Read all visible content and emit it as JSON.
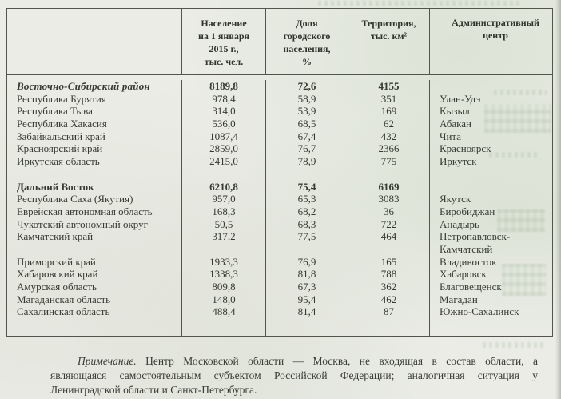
{
  "table": {
    "headers": {
      "region": "",
      "population": {
        "lines": [
          "Население",
          "на 1 января",
          "2015 г.,",
          "тыс. чел."
        ]
      },
      "urban_share": {
        "lines": [
          "Доля",
          "городского",
          "населения,",
          "%"
        ]
      },
      "territory": {
        "lines": [
          "Территория,",
          "тыс. км²"
        ]
      },
      "admin_center": {
        "lines": [
          "Административный",
          "центр"
        ]
      }
    },
    "rows": [
      {
        "style": "group-italic",
        "region": "Восточно-Сибирский район",
        "population": "8189,8",
        "urban": "72,6",
        "territory": "4155",
        "center": ""
      },
      {
        "region": "Республика Бурятия",
        "population": "978,4",
        "urban": "58,9",
        "territory": "351",
        "center": "Улан-Удэ"
      },
      {
        "region": "Республика Тыва",
        "population": "314,0",
        "urban": "53,9",
        "territory": "169",
        "center": "Кызыл"
      },
      {
        "region": "Республика Хакасия",
        "population": "536,0",
        "urban": "68,5",
        "territory": "62",
        "center": "Абакан"
      },
      {
        "region": "Забайкальский край",
        "population": "1087,4",
        "urban": "67,4",
        "territory": "432",
        "center": "Чита"
      },
      {
        "region": "Красноярский край",
        "population": "2859,0",
        "urban": "76,7",
        "territory": "2366",
        "center": "Красноярск"
      },
      {
        "region": "Иркутская область",
        "population": "2415,0",
        "urban": "78,9",
        "territory": "775",
        "center": "Иркутск"
      },
      {
        "style": "spacer",
        "region": "",
        "population": "",
        "urban": "",
        "territory": "",
        "center": ""
      },
      {
        "style": "group",
        "region": "Дальний Восток",
        "population": "6210,8",
        "urban": "75,4",
        "territory": "6169",
        "center": ""
      },
      {
        "region": "Республика Саха (Якутия)",
        "population": "957,0",
        "urban": "65,3",
        "territory": "3083",
        "center": "Якутск"
      },
      {
        "region": "Еврейская автономная область",
        "population": "168,3",
        "urban": "68,2",
        "territory": "36",
        "center": "Биробиджан"
      },
      {
        "region": "Чукотский автономный округ",
        "population": "50,5",
        "urban": "68,3",
        "territory": "722",
        "center": "Анадырь"
      },
      {
        "style": "tall",
        "region": "Камчатский край",
        "population": "317,2",
        "urban": "77,5",
        "territory": "464",
        "center": "Петропавловск-Камчатский"
      },
      {
        "region": "Приморский край",
        "population": "1933,3",
        "urban": "76,9",
        "territory": "165",
        "center": "Владивосток"
      },
      {
        "region": "Хабаровский край",
        "population": "1338,3",
        "urban": "81,8",
        "territory": "788",
        "center": "Хабаровск"
      },
      {
        "region": "Амурская область",
        "population": "809,8",
        "urban": "67,3",
        "territory": "362",
        "center": "Благовещенск"
      },
      {
        "region": "Магаданская область",
        "population": "148,0",
        "urban": "95,4",
        "territory": "462",
        "center": "Магадан"
      },
      {
        "region": "Сахалинская область",
        "population": "488,4",
        "urban": "81,4",
        "territory": "87",
        "center": "Южно-Сахалинск"
      }
    ]
  },
  "note": {
    "label": "Примечание.",
    "line1_rest": " Центр Московской области — Москва, не входящая в состав области, а",
    "line2": "являющаяся самостоятельным субъектом Российской Федерации; аналогичная ситуация у",
    "line3": "Ленинградской области и Санкт-Петербурга.",
    "full_text": "Примечание. Центр Московской области — Москва, не входящая в состав области, а являющаяся самостоятельным субъектом Российской Федерации; аналогичная ситуация у Ленинградской области и Санкт-Петербурга."
  },
  "colors": {
    "paper": "#eaece5",
    "ink": "#363a31",
    "border": "#53554b"
  }
}
